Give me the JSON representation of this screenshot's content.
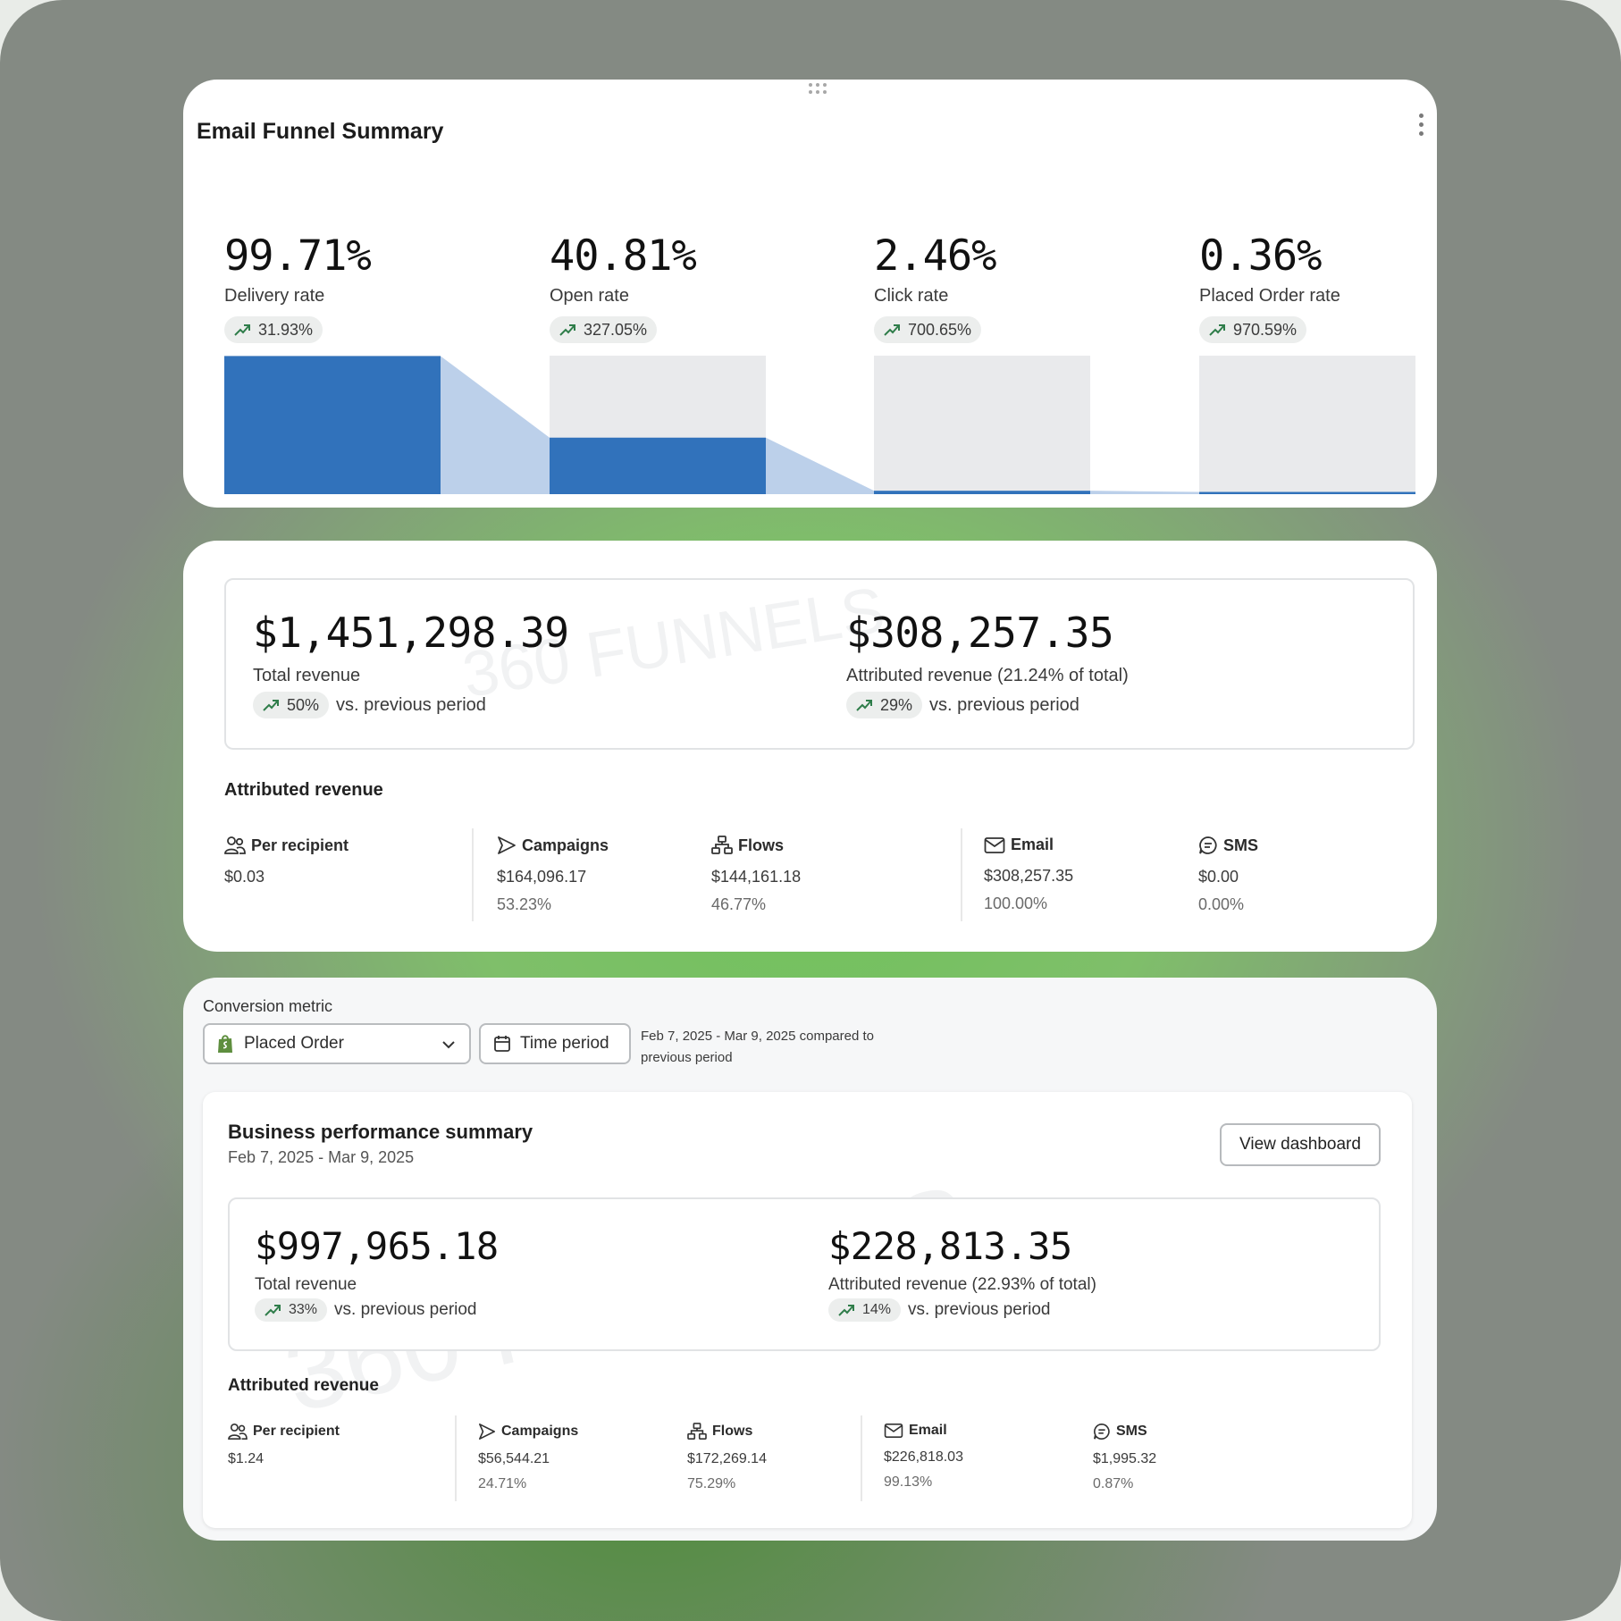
{
  "funnel_card": {
    "title": "Email Funnel Summary",
    "metrics": [
      {
        "value": "99.71%",
        "label": "Delivery rate",
        "change": "31.93%",
        "fill": 0.9971
      },
      {
        "value": "40.81%",
        "label": "Open rate",
        "change": "327.05%",
        "fill": 0.4081
      },
      {
        "value": "2.46%",
        "label": "Click rate",
        "change": "700.65%",
        "fill": 0.0246
      },
      {
        "value": "0.36%",
        "label": "Placed Order rate",
        "change": "970.59%",
        "fill": 0.0036
      }
    ]
  },
  "revenue_card": {
    "total": {
      "amount": "$1,451,298.39",
      "label": "Total revenue",
      "change": "50%",
      "compare": "vs. previous period"
    },
    "attributed": {
      "amount": "$308,257.35",
      "label": "Attributed revenue (21.24% of total)",
      "change": "29%",
      "compare": "vs. previous period"
    },
    "section_title": "Attributed revenue",
    "items": [
      {
        "name": "Per recipient",
        "icon": "people-icon",
        "value": "$0.03",
        "pct": ""
      },
      {
        "name": "Campaigns",
        "icon": "send-icon",
        "value": "$164,096.17",
        "pct": "53.23%"
      },
      {
        "name": "Flows",
        "icon": "flows-icon",
        "value": "$144,161.18",
        "pct": "46.77%"
      },
      {
        "name": "Email",
        "icon": "email-icon",
        "value": "$308,257.35",
        "pct": "100.00%"
      },
      {
        "name": "SMS",
        "icon": "sms-icon",
        "value": "$0.00",
        "pct": "0.00%"
      }
    ],
    "watermark": "360 FUNNELS"
  },
  "business_card": {
    "conversion_label": "Conversion metric",
    "selected_metric": "Placed Order",
    "time_period_label": "Time period",
    "period_text": "Feb 7, 2025 - Mar 9, 2025 compared to previous period",
    "summary_title": "Business performance summary",
    "summary_date": "Feb 7, 2025 - Mar 9, 2025",
    "view_dashboard": "View dashboard",
    "total": {
      "amount": "$997,965.18",
      "label": "Total revenue",
      "change": "33%",
      "compare": "vs. previous period"
    },
    "attributed": {
      "amount": "$228,813.35",
      "label": "Attributed revenue (22.93% of total)",
      "change": "14%",
      "compare": "vs. previous period"
    },
    "section_title": "Attributed revenue",
    "items": [
      {
        "name": "Per recipient",
        "icon": "people-icon",
        "value": "$1.24",
        "pct": ""
      },
      {
        "name": "Campaigns",
        "icon": "send-icon",
        "value": "$56,544.21",
        "pct": "24.71%"
      },
      {
        "name": "Flows",
        "icon": "flows-icon",
        "value": "$172,269.14",
        "pct": "75.29%"
      },
      {
        "name": "Email",
        "icon": "email-icon",
        "value": "$226,818.03",
        "pct": "99.13%"
      },
      {
        "name": "SMS",
        "icon": "sms-icon",
        "value": "$1,995.32",
        "pct": "0.87%"
      }
    ],
    "watermark": "360 FUNNELS"
  },
  "colors": {
    "bar_blue": "#3172bb",
    "bar_bg": "#e9eaec",
    "connector": "#bcd0ea",
    "trend_green": "#2f7d4a"
  }
}
